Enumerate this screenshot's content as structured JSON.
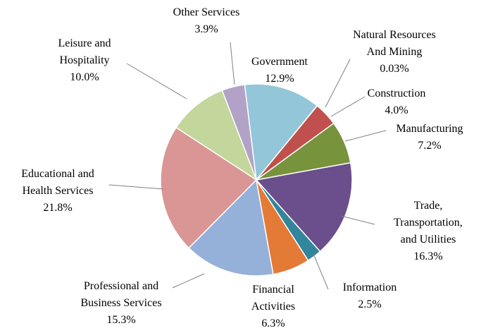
{
  "chart_data": {
    "type": "pie",
    "categories": [
      "Government",
      "Natural Resources\nAnd Mining",
      "Construction",
      "Manufacturing",
      "Trade,\nTransportation,\nand Utilities",
      "Information",
      "Financial\nActivities",
      "Professional and\nBusiness Services",
      "Educational and\nHealth Services",
      "Leisure and\nHospitality",
      "Other Services"
    ],
    "values": [
      12.9,
      0.03,
      4.0,
      7.2,
      16.3,
      2.5,
      6.3,
      15.3,
      21.8,
      10.0,
      3.9
    ],
    "value_labels": [
      "12.9%",
      "0.03%",
      "4.0%",
      "7.2%",
      "16.3%",
      "2.5%",
      "6.3%",
      "15.3%",
      "21.8%",
      "10.0%",
      "3.9%"
    ],
    "colors": [
      "#93c6d8",
      "#c0504d",
      "#c0504d",
      "#77933c",
      "#6b4e8c",
      "#31859c",
      "#e37a36",
      "#95b0d9",
      "#d99694",
      "#c3d69b",
      "#b3a2c7"
    ]
  }
}
